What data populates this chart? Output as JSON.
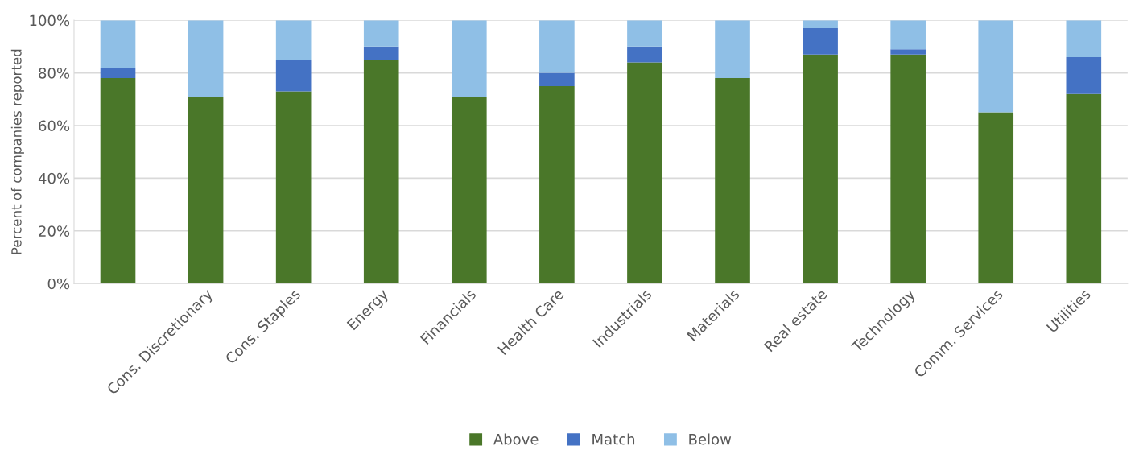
{
  "chart_data": {
    "type": "bar",
    "stacked": true,
    "ylabel": "Percent of companies reported",
    "categories": [
      null,
      "Cons. Discretionary",
      "Cons. Staples",
      "Energy",
      "Financials",
      "Health Care",
      "Industrials",
      "Materials",
      "Real estate",
      "Technology",
      "Comm. Services",
      "Utilities"
    ],
    "series": [
      {
        "name": "Above",
        "color": "#4a7729",
        "values": [
          78,
          71,
          73,
          85,
          71,
          75,
          84,
          78,
          87,
          87,
          65,
          72
        ]
      },
      {
        "name": "Match",
        "color": "#4472c4",
        "values": [
          4,
          0,
          12,
          5,
          0,
          5,
          6,
          0,
          10,
          2,
          0,
          14
        ]
      },
      {
        "name": "Below",
        "color": "#8fbfe6",
        "values": [
          18,
          29,
          15,
          10,
          29,
          20,
          10,
          22,
          3,
          11,
          35,
          14
        ]
      }
    ],
    "ylim": [
      0,
      100
    ],
    "yticks": [
      {
        "value": 0,
        "label": "0%"
      },
      {
        "value": 20,
        "label": "20%"
      },
      {
        "value": 40,
        "label": "40%"
      },
      {
        "value": 60,
        "label": "60%"
      },
      {
        "value": 80,
        "label": "80%"
      },
      {
        "value": 100,
        "label": "100%"
      }
    ],
    "grid": "y",
    "legend": "bottom"
  }
}
